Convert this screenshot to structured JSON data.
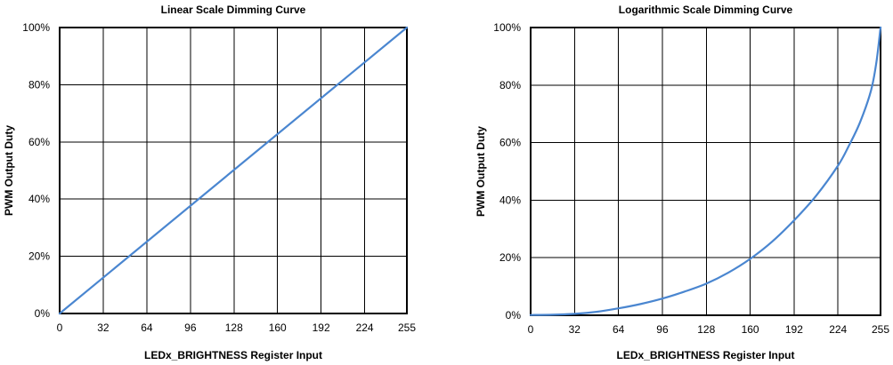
{
  "colors": {
    "series": "#4a86d0",
    "grid": "#000000",
    "text": "#000000"
  },
  "chart_data": [
    {
      "type": "line",
      "title": "Linear Scale Dimming Curve",
      "xlabel": "LEDx_BRIGHTNESS Register Input",
      "ylabel": "PWM Output Duty",
      "xlim": [
        0,
        255
      ],
      "ylim": [
        0,
        100
      ],
      "x_ticks": [
        0,
        32,
        64,
        96,
        128,
        160,
        192,
        224,
        255
      ],
      "x_tick_labels": [
        "0",
        "32",
        "64",
        "96",
        "128",
        "160",
        "192",
        "224",
        "255"
      ],
      "y_ticks": [
        0,
        20,
        40,
        60,
        80,
        100
      ],
      "y_tick_labels": [
        "0%",
        "20%",
        "40%",
        "60%",
        "80%",
        "100%"
      ],
      "grid": true,
      "legend": "none",
      "series": [
        {
          "x": [
            0,
            255
          ],
          "y": [
            0,
            100
          ]
        }
      ]
    },
    {
      "type": "line",
      "title": "Logarithmic Scale Dimming Curve",
      "xlabel": "LEDx_BRIGHTNESS Register Input",
      "ylabel": "PWM Output Duty",
      "xlim": [
        0,
        255
      ],
      "ylim": [
        0,
        100
      ],
      "x_ticks": [
        0,
        32,
        64,
        96,
        128,
        160,
        192,
        224,
        255
      ],
      "x_tick_labels": [
        "0",
        "32",
        "64",
        "96",
        "128",
        "160",
        "192",
        "224",
        "255"
      ],
      "y_ticks": [
        0,
        20,
        40,
        60,
        80,
        100
      ],
      "y_tick_labels": [
        "0%",
        "20%",
        "40%",
        "60%",
        "80%",
        "100%"
      ],
      "grid": true,
      "legend": "none",
      "series": [
        {
          "x": [
            0,
            16,
            32,
            48,
            64,
            80,
            96,
            112,
            128,
            144,
            160,
            176,
            192,
            208,
            224,
            232,
            240,
            248,
            252,
            255
          ],
          "y": [
            0.1,
            0.2,
            0.5,
            1.2,
            2.4,
            3.9,
            5.8,
            8.2,
            11.0,
            14.8,
            19.6,
            25.6,
            33.0,
            41.5,
            52.0,
            59.0,
            67.0,
            78.0,
            88.0,
            100
          ]
        }
      ]
    }
  ]
}
